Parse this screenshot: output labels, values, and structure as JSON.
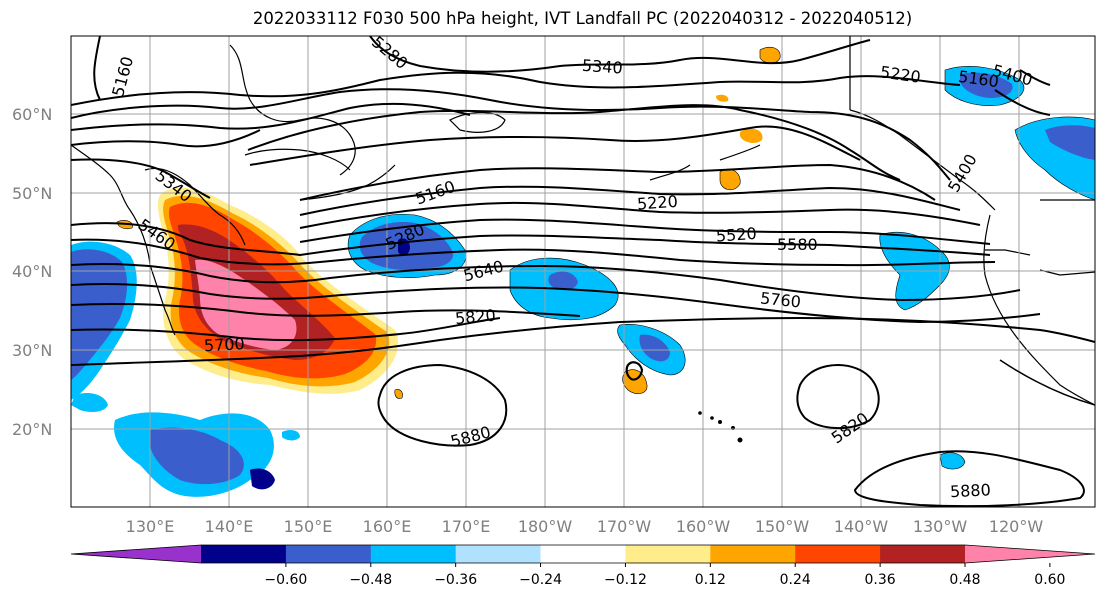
{
  "title": "2022033112 F030 500 hPa height, IVT Landfall PC (2022040312 - 2022040512)",
  "lat_labels": [
    "60°N",
    "50°N",
    "40°N",
    "30°N",
    "20°N"
  ],
  "lon_labels": [
    "130°E",
    "140°E",
    "150°E",
    "160°E",
    "170°E",
    "180°W",
    "170°W",
    "160°W",
    "150°W",
    "140°W",
    "130°W",
    "120°W"
  ],
  "contour_labels": {
    "c5160a": "5160",
    "c5280a": "5280",
    "c5340a": "5340",
    "c5220a": "5220",
    "c5160b": "5160",
    "c5400a": "5400",
    "c5400b": "5400",
    "c5340b": "5340",
    "c5460a": "5460",
    "c5160c": "5160",
    "c5220b": "5220",
    "c5280b": "5280",
    "c5520a": "5520",
    "c5580a": "5580",
    "c5640a": "5640",
    "c5700a": "5700",
    "c5820a": "5820",
    "c5760a": "5760",
    "c5880a": "5880",
    "c5820b": "5820",
    "c5880b": "5880"
  },
  "colorbar": {
    "ticks": [
      "−0.60",
      "−0.48",
      "−0.36",
      "−0.24",
      "−0.12",
      "0.12",
      "0.24",
      "0.36",
      "0.48",
      "0.60"
    ],
    "colors": [
      "#9932cc",
      "#00008b",
      "#3a5fcd",
      "#00bfff",
      "#b0e2ff",
      "#ffffff",
      "#ffec8b",
      "#ffa500",
      "#ff4500",
      "#b22222",
      "#ff82ab"
    ]
  },
  "colors": {
    "contour": "#000000",
    "grid": "#a0a0a0",
    "coast": "#000000"
  }
}
